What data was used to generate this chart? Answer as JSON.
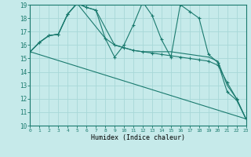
{
  "xlabel": "Humidex (Indice chaleur)",
  "xlim": [
    0,
    23
  ],
  "ylim": [
    10,
    19
  ],
  "yticks": [
    10,
    11,
    12,
    13,
    14,
    15,
    16,
    17,
    18,
    19
  ],
  "xticks": [
    0,
    1,
    2,
    3,
    4,
    5,
    6,
    7,
    8,
    9,
    10,
    11,
    12,
    13,
    14,
    15,
    16,
    17,
    18,
    19,
    20,
    21,
    22,
    23
  ],
  "background_color": "#c6eaea",
  "line_color": "#1a7a6e",
  "grid_color": "#a8d8d8",
  "line1_x": [
    0,
    1,
    2,
    3,
    4,
    5,
    6,
    7,
    8,
    9,
    10,
    11,
    12,
    13,
    14,
    15,
    16,
    17,
    18,
    19,
    20,
    21,
    22,
    23
  ],
  "line1_y": [
    15.5,
    16.2,
    16.7,
    16.8,
    18.3,
    19.1,
    18.8,
    18.6,
    16.5,
    15.1,
    16.0,
    17.5,
    19.2,
    18.2,
    16.4,
    15.1,
    19.0,
    18.5,
    18.0,
    15.3,
    14.7,
    12.5,
    11.9,
    10.5
  ],
  "line2_x": [
    0,
    1,
    2,
    3,
    4,
    5,
    6,
    7,
    9,
    10,
    11,
    12,
    13,
    14,
    15,
    16,
    17,
    18,
    19,
    20,
    21,
    22,
    23
  ],
  "line2_y": [
    15.5,
    16.2,
    16.7,
    16.8,
    18.3,
    19.1,
    18.8,
    18.6,
    16.0,
    15.8,
    15.6,
    15.5,
    15.4,
    15.3,
    15.2,
    15.1,
    15.0,
    14.9,
    14.8,
    14.5,
    13.2,
    12.0,
    10.5
  ],
  "line3_x": [
    0,
    23
  ],
  "line3_y": [
    15.5,
    10.5
  ],
  "line4_x": [
    0,
    1,
    2,
    3,
    4,
    5,
    8,
    9,
    10,
    11,
    12,
    13,
    14,
    15,
    16,
    17,
    18,
    19,
    20,
    21,
    22,
    23
  ],
  "line4_y": [
    15.5,
    16.2,
    16.7,
    16.8,
    18.3,
    19.1,
    16.5,
    16.0,
    15.8,
    15.6,
    15.5,
    15.5,
    15.5,
    15.5,
    15.4,
    15.3,
    15.2,
    15.1,
    14.8,
    13.0,
    12.0,
    10.5
  ]
}
